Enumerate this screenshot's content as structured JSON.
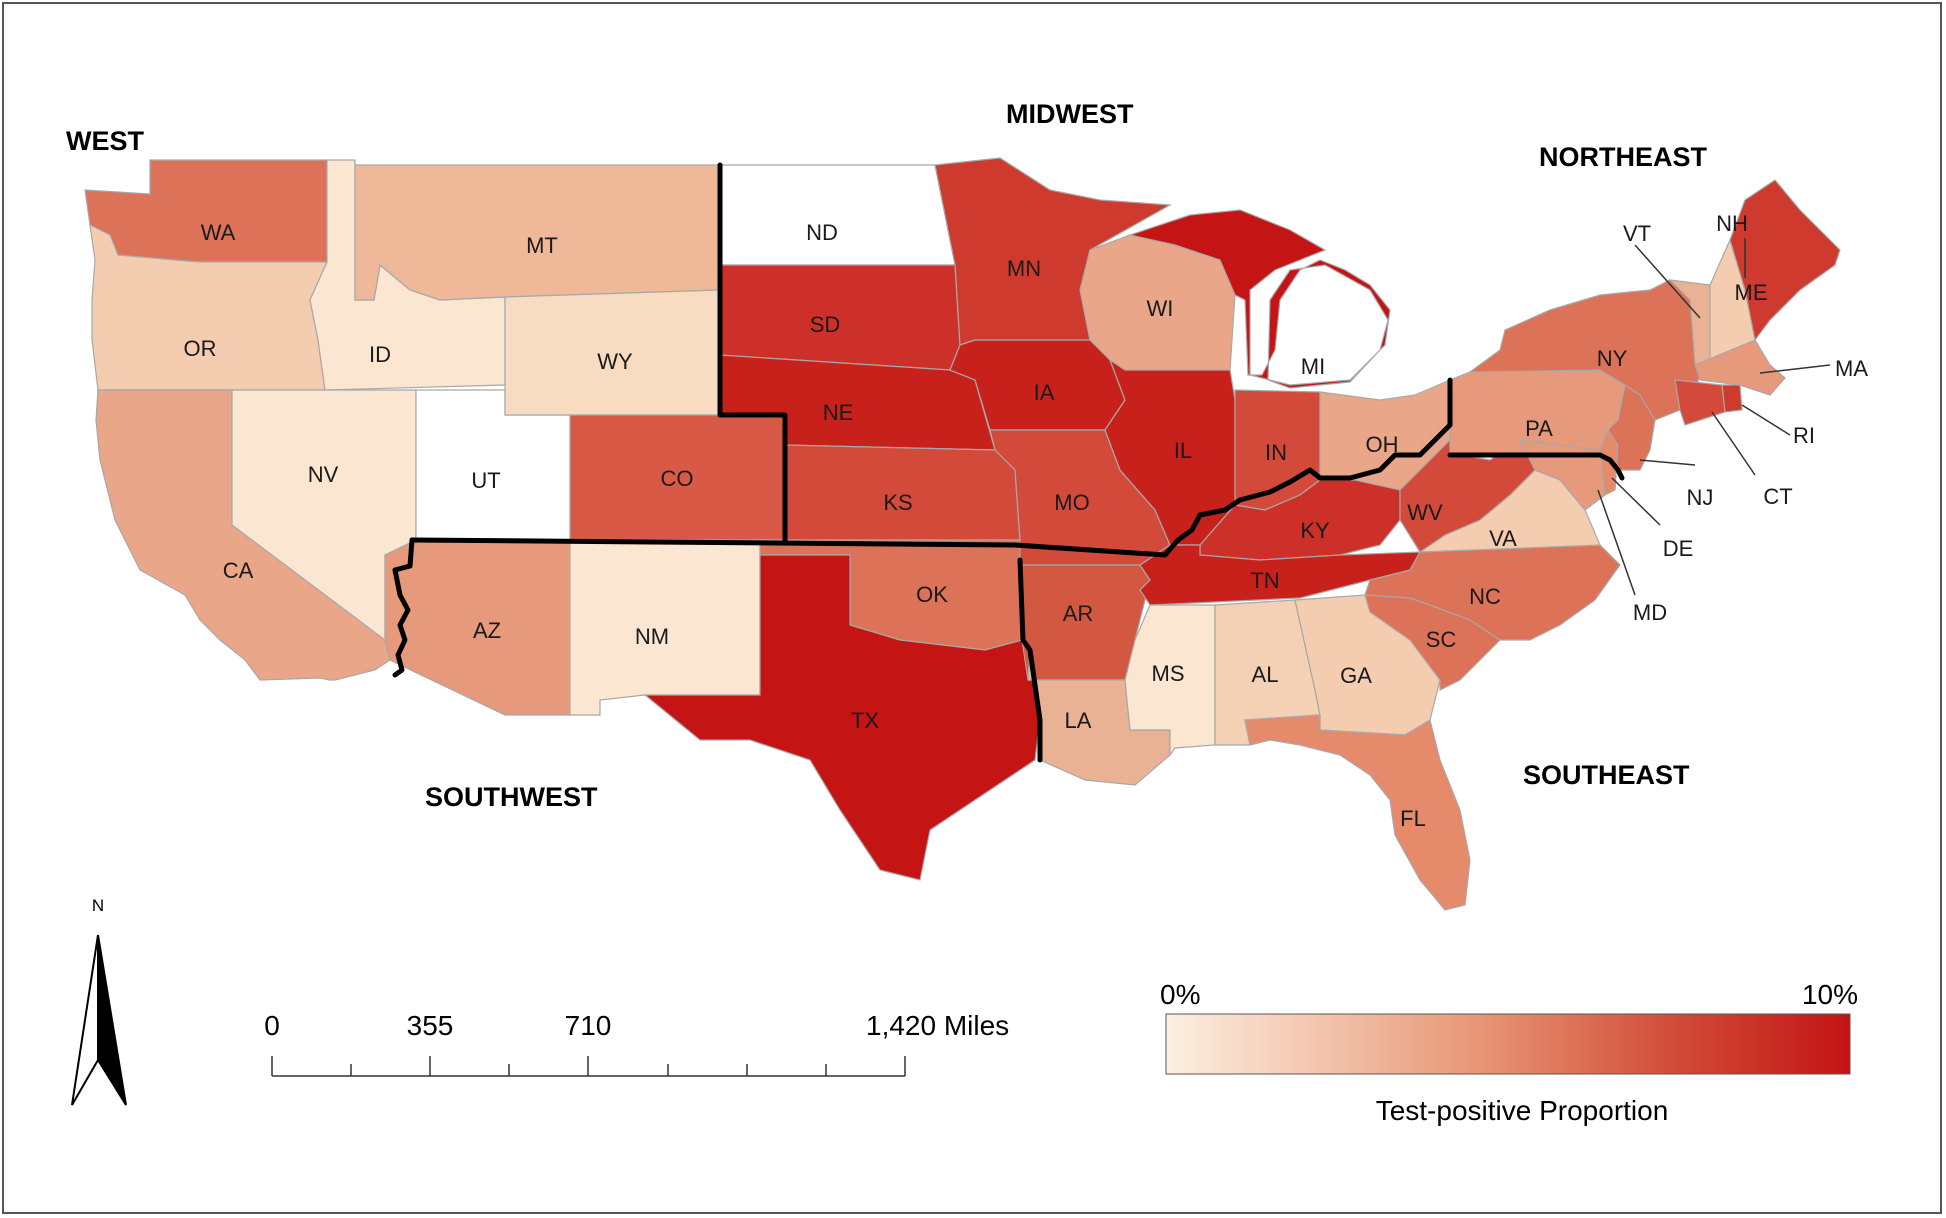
{
  "regions": {
    "west": "WEST",
    "midwest": "MIDWEST",
    "northeast": "NORTHEAST",
    "southwest": "SOUTHWEST",
    "southeast": "SOUTHEAST"
  },
  "states": {
    "WA": {
      "label": "WA",
      "color": "#dc7358"
    },
    "OR": {
      "label": "OR",
      "color": "#f4cdb0"
    },
    "CA": {
      "label": "CA",
      "color": "#eaa688"
    },
    "ID": {
      "label": "ID",
      "color": "#fbe6d2"
    },
    "NV": {
      "label": "NV",
      "color": "#fbe6d2"
    },
    "UT": {
      "label": "UT",
      "color": "#ffffff"
    },
    "MT": {
      "label": "MT",
      "color": "#efb898"
    },
    "WY": {
      "label": "WY",
      "color": "#f7dcc2"
    },
    "CO": {
      "label": "CO",
      "color": "#d85a46"
    },
    "AZ": {
      "label": "AZ",
      "color": "#e69a7b"
    },
    "NM": {
      "label": "NM",
      "color": "#fbe6d2"
    },
    "ND": {
      "label": "ND",
      "color": "#ffffff"
    },
    "SD": {
      "label": "SD",
      "color": "#cc3028"
    },
    "NE": {
      "label": "NE",
      "color": "#c8201b"
    },
    "KS": {
      "label": "KS",
      "color": "#d34a3a"
    },
    "OK": {
      "label": "OK",
      "color": "#dc7358"
    },
    "TX": {
      "label": "TX",
      "color": "#c41414"
    },
    "MN": {
      "label": "MN",
      "color": "#cf3a2e"
    },
    "IA": {
      "label": "IA",
      "color": "#c8201b"
    },
    "MO": {
      "label": "MO",
      "color": "#d34a3a"
    },
    "AR": {
      "label": "AR",
      "color": "#d35842"
    },
    "LA": {
      "label": "LA",
      "color": "#eab294"
    },
    "WI": {
      "label": "WI",
      "color": "#eaa688"
    },
    "IL": {
      "label": "IL",
      "color": "#c8201b"
    },
    "MI": {
      "label": "MI",
      "color": "#c41414"
    },
    "IN": {
      "label": "IN",
      "color": "#d34a3a"
    },
    "OH": {
      "label": "OH",
      "color": "#eaa688"
    },
    "KY": {
      "label": "KY",
      "color": "#cc3028"
    },
    "TN": {
      "label": "TN",
      "color": "#c8201b"
    },
    "MS": {
      "label": "MS",
      "color": "#fbe6d2"
    },
    "AL": {
      "label": "AL",
      "color": "#f4d0b4"
    },
    "GA": {
      "label": "GA",
      "color": "#f4cdb0"
    },
    "FL": {
      "label": "FL",
      "color": "#e68a6c"
    },
    "SC": {
      "label": "SC",
      "color": "#dc7358"
    },
    "NC": {
      "label": "NC",
      "color": "#dc7358"
    },
    "VA": {
      "label": "VA",
      "color": "#f4cdb0"
    },
    "WV": {
      "label": "WV",
      "color": "#d34a3a"
    },
    "PA": {
      "label": "PA",
      "color": "#e69a7b"
    },
    "NY": {
      "label": "NY",
      "color": "#dc7358"
    },
    "VT": {
      "label": "VT",
      "color": "#eab294"
    },
    "NH": {
      "label": "NH",
      "color": "#f4cdb0"
    },
    "ME": {
      "label": "ME",
      "color": "#cf3a2e"
    },
    "MA": {
      "label": "MA",
      "color": "#e69a7b"
    },
    "RI": {
      "label": "RI",
      "color": "#cf3a2e"
    },
    "CT": {
      "label": "CT",
      "color": "#d34a3a"
    },
    "NJ": {
      "label": "NJ",
      "color": "#dc7358"
    },
    "DE": {
      "label": "DE",
      "color": "#e68a6c"
    },
    "MD": {
      "label": "MD",
      "color": "#e69a7b"
    }
  },
  "scale_bar": {
    "ticks": [
      "0",
      "355",
      "710",
      "1,420 Miles"
    ]
  },
  "legend": {
    "min_label": "0%",
    "max_label": "10%",
    "title": "Test-positive Proportion",
    "color_low": "#fdf0e2",
    "color_high": "#c41414"
  },
  "north_arrow": {
    "label": "N"
  }
}
